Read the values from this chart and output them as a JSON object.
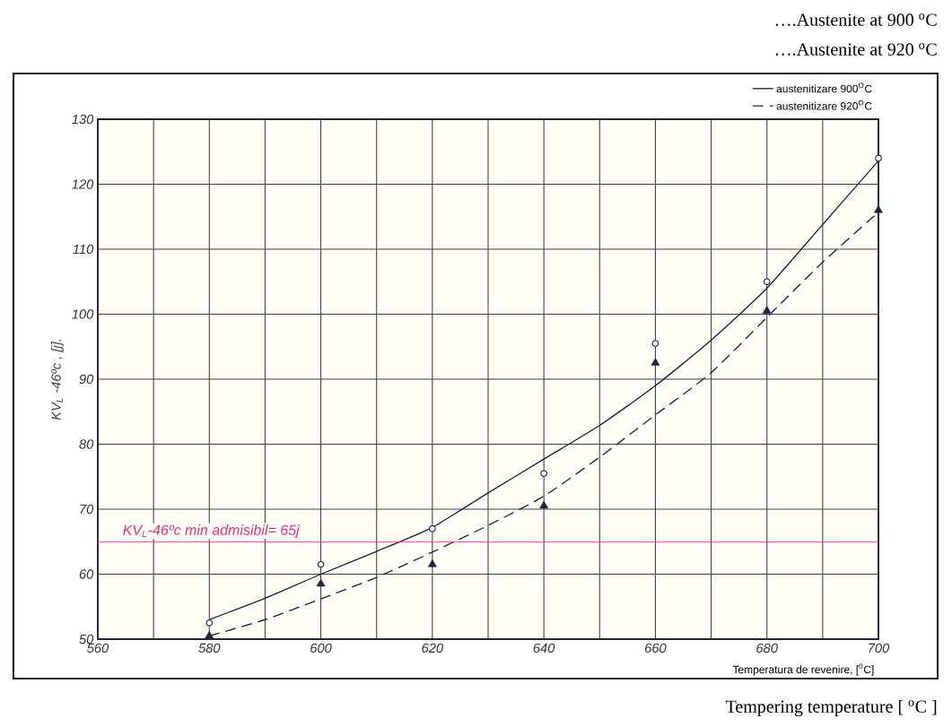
{
  "chart_data": {
    "type": "line",
    "annotations": [
      "….Austenite at 900 $^{o}$C",
      "….Austenite at 920 $^{o}$C",
      "Tempering temperature  [ $^{o}$C ]"
    ],
    "xlabel": "Temperatura de revenire, [$^{0}$C]",
    "ylabel": "KV$_{L}$ -46ºc , [j].",
    "xlim": [
      560,
      700
    ],
    "ylim": [
      50,
      130
    ],
    "xticks": [
      560,
      {
        "value": 570,
        "label": null
      },
      580,
      {
        "value": 590,
        "label": null
      },
      600,
      {
        "value": 610,
        "label": null
      },
      620,
      {
        "value": 630,
        "label": null
      },
      640,
      {
        "value": 650,
        "label": null
      },
      660,
      {
        "value": 670,
        "label": null
      },
      680,
      {
        "value": 690,
        "label": null
      },
      700
    ],
    "yticks": [
      50,
      60,
      70,
      80,
      90,
      100,
      110,
      120,
      130
    ],
    "grid": true,
    "legend": "top right",
    "series": [
      {
        "type": "scatter",
        "marker": "circle",
        "color": "#1c2442",
        "x": [
          580,
          600,
          620,
          640,
          660,
          680,
          700
        ],
        "values": [
          52.5,
          61.5,
          67,
          75.5,
          95.5,
          105,
          124
        ]
      },
      {
        "type": "scatter",
        "marker": "triangle",
        "color": "#1c2442",
        "x": [
          580,
          600,
          620,
          640,
          660,
          680,
          700
        ],
        "values": [
          50.5,
          58.5,
          61.5,
          70.5,
          92.5,
          100.5,
          116
        ]
      },
      {
        "name": "austenitizare 900$^{O}$C",
        "line_style": "solid",
        "color": "#1c2442",
        "x": [
          580,
          590,
          600,
          610,
          620,
          630,
          640,
          650,
          660,
          670,
          680,
          690,
          700
        ],
        "values": [
          53,
          56.3,
          60,
          63.5,
          67.2,
          72.5,
          77.7,
          82.9,
          89,
          96,
          104,
          113.8,
          123.6
        ]
      },
      {
        "name": "austenitizare 920$^{O}$C",
        "line_style": "dashed",
        "color": "#1c2442",
        "x": [
          580,
          590,
          600,
          610,
          620,
          630,
          640,
          650,
          660,
          670,
          680,
          690,
          700
        ],
        "values": [
          50.5,
          53,
          56.2,
          59.5,
          63.4,
          67.5,
          72,
          78,
          84.5,
          91,
          99.5,
          108,
          115.7
        ]
      }
    ],
    "ref_lines": [
      {
        "axis": "y",
        "value": 65,
        "label": "KV$_{L}$-46ºc min admisibil= 65j",
        "color": "#e8307a"
      }
    ]
  }
}
